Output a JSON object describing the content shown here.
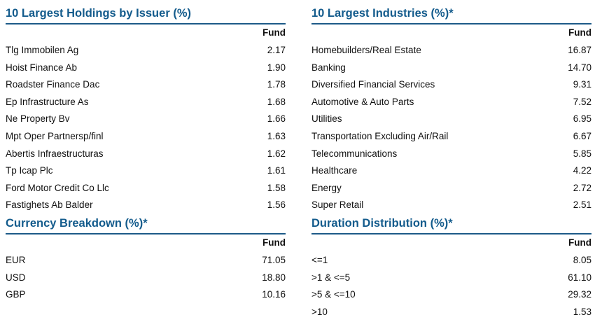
{
  "colors": {
    "title": "#135b8c",
    "rule": "#1d5a88",
    "text": "#111111",
    "background": "#ffffff"
  },
  "sections": {
    "holdings": {
      "title": "10 Largest Holdings by Issuer (%)",
      "column_header": "Fund",
      "rows": [
        {
          "label": "Tlg Immobilen Ag",
          "value": "2.17"
        },
        {
          "label": "Hoist Finance Ab",
          "value": "1.90"
        },
        {
          "label": "Roadster Finance Dac",
          "value": "1.78"
        },
        {
          "label": "Ep Infrastructure As",
          "value": "1.68"
        },
        {
          "label": "Ne Property Bv",
          "value": "1.66"
        },
        {
          "label": "Mpt Oper Partnersp/finl",
          "value": "1.63"
        },
        {
          "label": "Abertis Infraestructuras",
          "value": "1.62"
        },
        {
          "label": "Tp Icap Plc",
          "value": "1.61"
        },
        {
          "label": "Ford Motor Credit Co Llc",
          "value": "1.58"
        },
        {
          "label": "Fastighets Ab Balder",
          "value": "1.56"
        }
      ]
    },
    "industries": {
      "title": "10 Largest Industries (%)*",
      "column_header": "Fund",
      "rows": [
        {
          "label": "Homebuilders/Real Estate",
          "value": "16.87"
        },
        {
          "label": "Banking",
          "value": "14.70"
        },
        {
          "label": "Diversified Financial Services",
          "value": "9.31"
        },
        {
          "label": "Automotive & Auto Parts",
          "value": "7.52"
        },
        {
          "label": "Utilities",
          "value": "6.95"
        },
        {
          "label": "Transportation Excluding Air/Rail",
          "value": "6.67"
        },
        {
          "label": "Telecommunications",
          "value": "5.85"
        },
        {
          "label": "Healthcare",
          "value": "4.22"
        },
        {
          "label": "Energy",
          "value": "2.72"
        },
        {
          "label": "Super Retail",
          "value": "2.51"
        }
      ]
    },
    "currency": {
      "title": "Currency Breakdown (%)*",
      "column_header": "Fund",
      "rows": [
        {
          "label": "EUR",
          "value": "71.05"
        },
        {
          "label": "USD",
          "value": "18.80"
        },
        {
          "label": "GBP",
          "value": "10.16"
        }
      ]
    },
    "duration": {
      "title": "Duration Distribution (%)*",
      "column_header": "Fund",
      "rows": [
        {
          "label": "<=1",
          "value": "8.05"
        },
        {
          "label": ">1 & <=5",
          "value": "61.10"
        },
        {
          "label": ">5 & <=10",
          "value": "29.32"
        },
        {
          "label": ">10",
          "value": "1.53"
        }
      ]
    }
  }
}
